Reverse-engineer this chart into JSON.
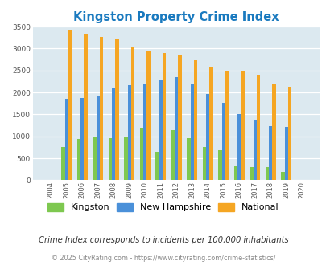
{
  "title": "Kingston Property Crime Index",
  "years": [
    "2004",
    "2005",
    "2006",
    "2007",
    "2008",
    "2009",
    "2010",
    "2011",
    "2012",
    "2013",
    "2014",
    "2015",
    "2016",
    "2017",
    "2018",
    "2019",
    "2020"
  ],
  "kingston": [
    0,
    750,
    940,
    980,
    960,
    990,
    1175,
    640,
    1150,
    960,
    760,
    680,
    320,
    305,
    295,
    185,
    0
  ],
  "new_hampshire": [
    0,
    1850,
    1870,
    1900,
    2090,
    2160,
    2180,
    2290,
    2340,
    2190,
    1970,
    1760,
    1500,
    1360,
    1240,
    1215,
    0
  ],
  "national": [
    0,
    3420,
    3335,
    3260,
    3210,
    3045,
    2955,
    2900,
    2860,
    2730,
    2590,
    2500,
    2470,
    2380,
    2200,
    2120,
    0
  ],
  "kingston_color": "#7ec850",
  "nh_color": "#4a90d9",
  "national_color": "#f5a623",
  "bg_color": "#dce9f0",
  "ylim": [
    0,
    3500
  ],
  "yticks": [
    0,
    500,
    1000,
    1500,
    2000,
    2500,
    3000,
    3500
  ],
  "note": "Crime Index corresponds to incidents per 100,000 inhabitants",
  "footer": "© 2025 CityRating.com - https://www.cityrating.com/crime-statistics/"
}
